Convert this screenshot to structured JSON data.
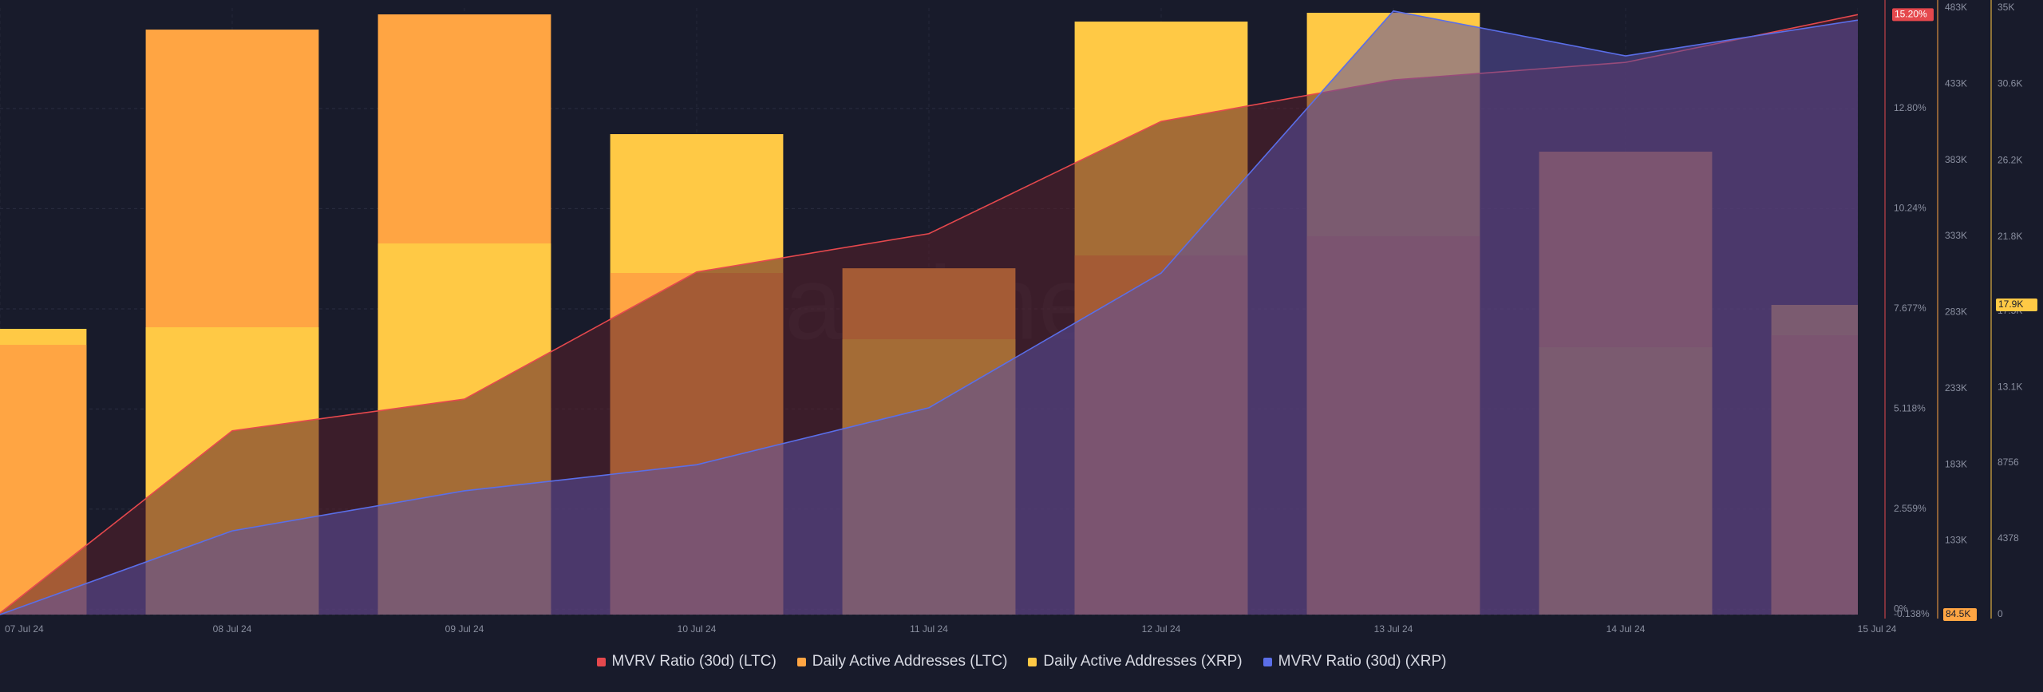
{
  "chart_data": {
    "type": "combo",
    "watermark": "santiment",
    "categories": [
      "07 Jul 24",
      "08 Jul 24",
      "09 Jul 24",
      "10 Jul 24",
      "11 Jul 24",
      "12 Jul 24",
      "13 Jul 24",
      "14 Jul 24",
      "15 Jul 24"
    ],
    "ylim": [
      -0.138,
      15.37
    ],
    "yticks": [
      {
        "value": -0.138,
        "label": "-0.138%"
      },
      {
        "value": 0,
        "label": "0%"
      },
      {
        "value": 2.559,
        "label": "2.559%"
      },
      {
        "value": 5.118,
        "label": "5.118%"
      },
      {
        "value": 7.677,
        "label": "7.677%"
      },
      {
        "value": 10.24,
        "label": "10.24%"
      },
      {
        "value": 12.8,
        "label": "12.80%"
      }
    ],
    "y2lim": [
      84500,
      483000
    ],
    "y2ticks": [
      {
        "value": 84500,
        "label": "84.5K"
      },
      {
        "value": 133000,
        "label": "133K"
      },
      {
        "value": 183000,
        "label": "183K"
      },
      {
        "value": 233000,
        "label": "233K"
      },
      {
        "value": 283000,
        "label": "283K"
      },
      {
        "value": 333000,
        "label": "333K"
      },
      {
        "value": 383000,
        "label": "383K"
      },
      {
        "value": 433000,
        "label": "433K"
      },
      {
        "value": 483000,
        "label": "483K"
      }
    ],
    "y3lim": [
      0,
      35000
    ],
    "y3ticks": [
      0,
      4378,
      8756,
      {
        "value": 13100,
        "label": "13.1K"
      },
      {
        "value": 17500,
        "label": "17.5K"
      },
      {
        "value": 21800,
        "label": "21.8K"
      },
      {
        "value": 26200,
        "label": "26.2K"
      },
      {
        "value": 30600,
        "label": "30.6K"
      },
      {
        "value": 35000,
        "label": "35K"
      }
    ],
    "y4lim": [
      0,
      100
    ],
    "grid": true,
    "series": [
      {
        "name": "MVRV Ratio (30d) (LTC)",
        "type": "line",
        "axis": "y",
        "color": "#e5484d",
        "fill": "#5a1f2a",
        "values": [
          -0.1,
          4.56,
          5.37,
          8.62,
          9.6,
          12.47,
          13.53,
          13.98,
          15.2
        ],
        "last_label": "15.20%"
      },
      {
        "name": "Daily Active Addresses (LTC)",
        "type": "bar",
        "axis": "y2",
        "color": "#ffa543",
        "values": [
          261700,
          468800,
          478800,
          308900,
          312000,
          320400,
          333000,
          388600,
          268000
        ]
      },
      {
        "name": "Daily Active Addresses (XRP)",
        "type": "bar",
        "axis": "y3",
        "color": "#ffc945",
        "values": [
          16487,
          16578,
          21413,
          27722,
          15887,
          34215,
          34722,
          15427,
          17867
        ],
        "last_label": "17.9K"
      },
      {
        "name": "MVRV Ratio (30d) (XRP)",
        "type": "line",
        "axis": "y4",
        "color": "#5a6ee8",
        "fill": "#5a4fa0",
        "values": [
          0,
          13.8,
          20.4,
          24.7,
          34.1,
          56.3,
          99.5,
          92.1,
          98.0
        ]
      }
    ]
  }
}
